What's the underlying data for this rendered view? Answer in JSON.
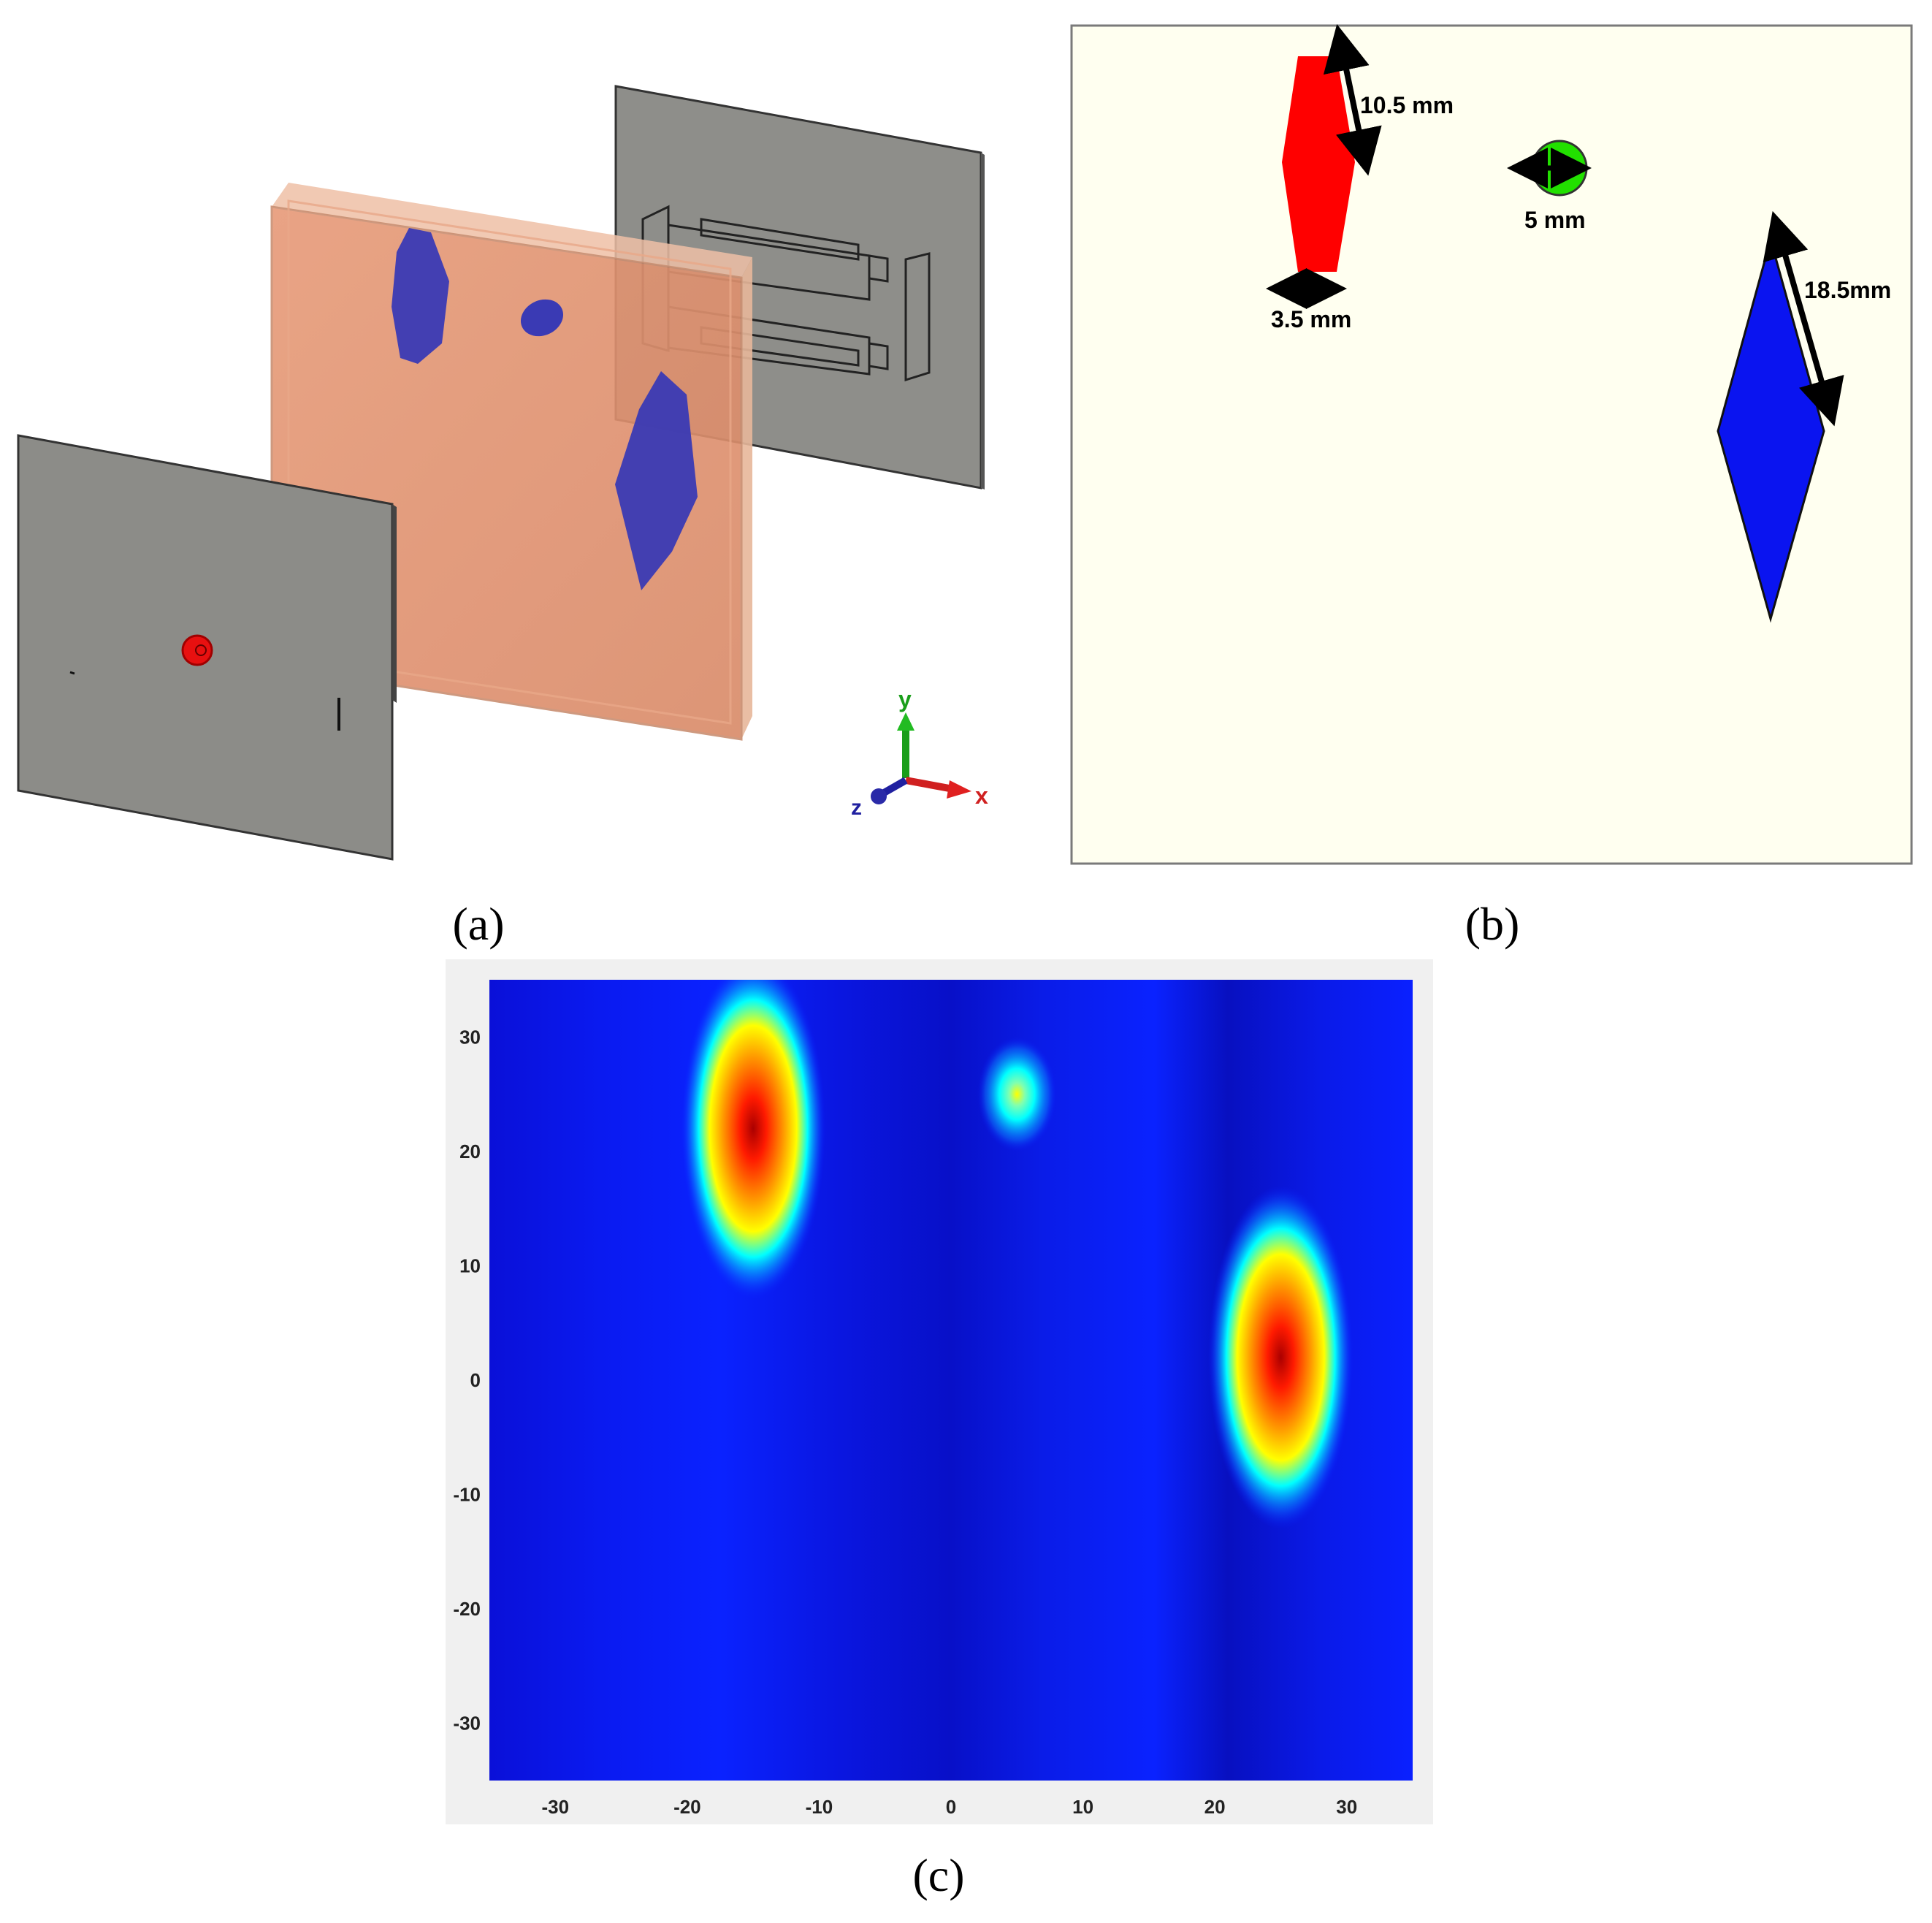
{
  "panels": {
    "a": {
      "caption_open": "(",
      "caption_letter": "a",
      "caption_close": ")"
    },
    "b": {
      "caption_open": "(",
      "caption_letter": "b",
      "caption_close": ")"
    },
    "c": {
      "caption_open": "(",
      "caption_letter": "c",
      "caption_close": ")"
    }
  },
  "axes_gizmo": {
    "x_label": "x",
    "y_label": "y",
    "z_label": "z"
  },
  "dimensions": {
    "red_height": "10.5 mm",
    "red_width": "3.5 mm",
    "green_diameter": "5 mm",
    "blue_length": "18.5mm"
  },
  "colors": {
    "red_target": "#ff0000",
    "green_target": "#22e000",
    "blue_target": "#0a14f0",
    "panel_b_bg": "#fffff0",
    "orange_slab": "#e08a66",
    "gray_plate": "#8c8c88",
    "purple_target": "#3a3ab4"
  },
  "chart_data": {
    "type": "heatmap",
    "x_ticks": [
      -30,
      -20,
      -10,
      0,
      10,
      20,
      30
    ],
    "y_ticks": [
      30,
      20,
      10,
      0,
      -10,
      -20,
      -30
    ],
    "xlim": [
      -35,
      35
    ],
    "ylim": [
      -35,
      35
    ],
    "colormap": "jet",
    "hotspots": [
      {
        "x": -15,
        "y": 22,
        "intensity": 1.0
      },
      {
        "x": 5,
        "y": 25,
        "intensity": 0.5
      },
      {
        "x": 25,
        "y": 2,
        "intensity": 1.0
      }
    ]
  }
}
